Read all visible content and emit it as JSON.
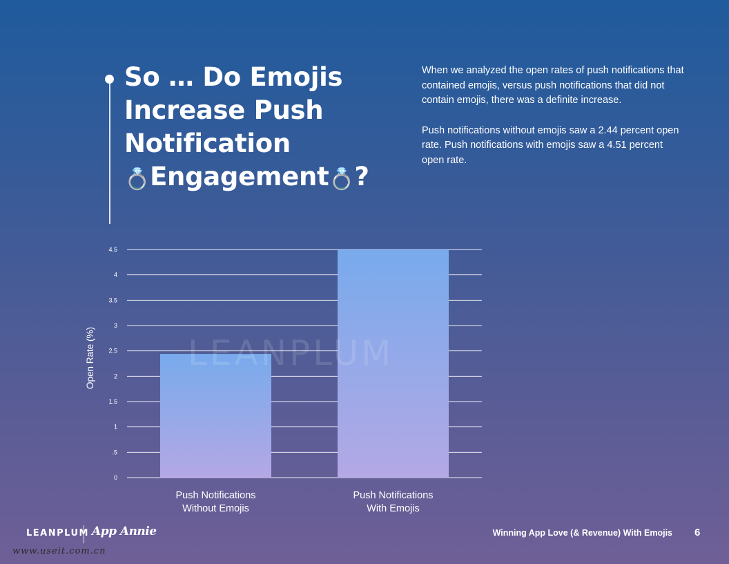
{
  "title": {
    "line1": "So … Do Emojis",
    "line2": "Increase Push",
    "line3": "Notification",
    "line4": "Engagement",
    "end": "?",
    "emoji": "💍"
  },
  "description": {
    "p1": "When we analyzed the open rates of push notifications that contained emojis, versus push notifications that did not contain emojis, there was a definite increase.",
    "p2": "Push notifications without emojis saw a 2.44 percent open rate. Push notifications with emojis saw a 4.51 percent open rate."
  },
  "chart_data": {
    "type": "bar",
    "categories": [
      "Push Notifications\nWithout Emojis",
      "Push Notifications\nWith Emojis"
    ],
    "values": [
      2.44,
      4.51
    ],
    "title": "",
    "xlabel": "",
    "ylabel": "Open Rate  (%)",
    "ylim": [
      0,
      4.5
    ],
    "yticks": [
      0,
      0.5,
      1,
      1.5,
      2,
      2.5,
      3,
      3.5,
      4,
      4.5
    ],
    "ytick_labels": [
      "0",
      ".5",
      "1",
      "1.5",
      "2",
      "2.5",
      "3",
      "3.5",
      "4",
      "4.5"
    ],
    "grid": true,
    "legend": "none",
    "bar_gradient_top": "#78aaec",
    "bar_gradient_bottom": "#b4a8e5",
    "watermark": "LEANPLUM"
  },
  "footer": {
    "brand": "LEANPLUM",
    "partner": "App Annie",
    "doc_title": "Winning App Love (& Revenue) With Emojis",
    "page_number": "6",
    "url": "www.useit.com.cn"
  }
}
